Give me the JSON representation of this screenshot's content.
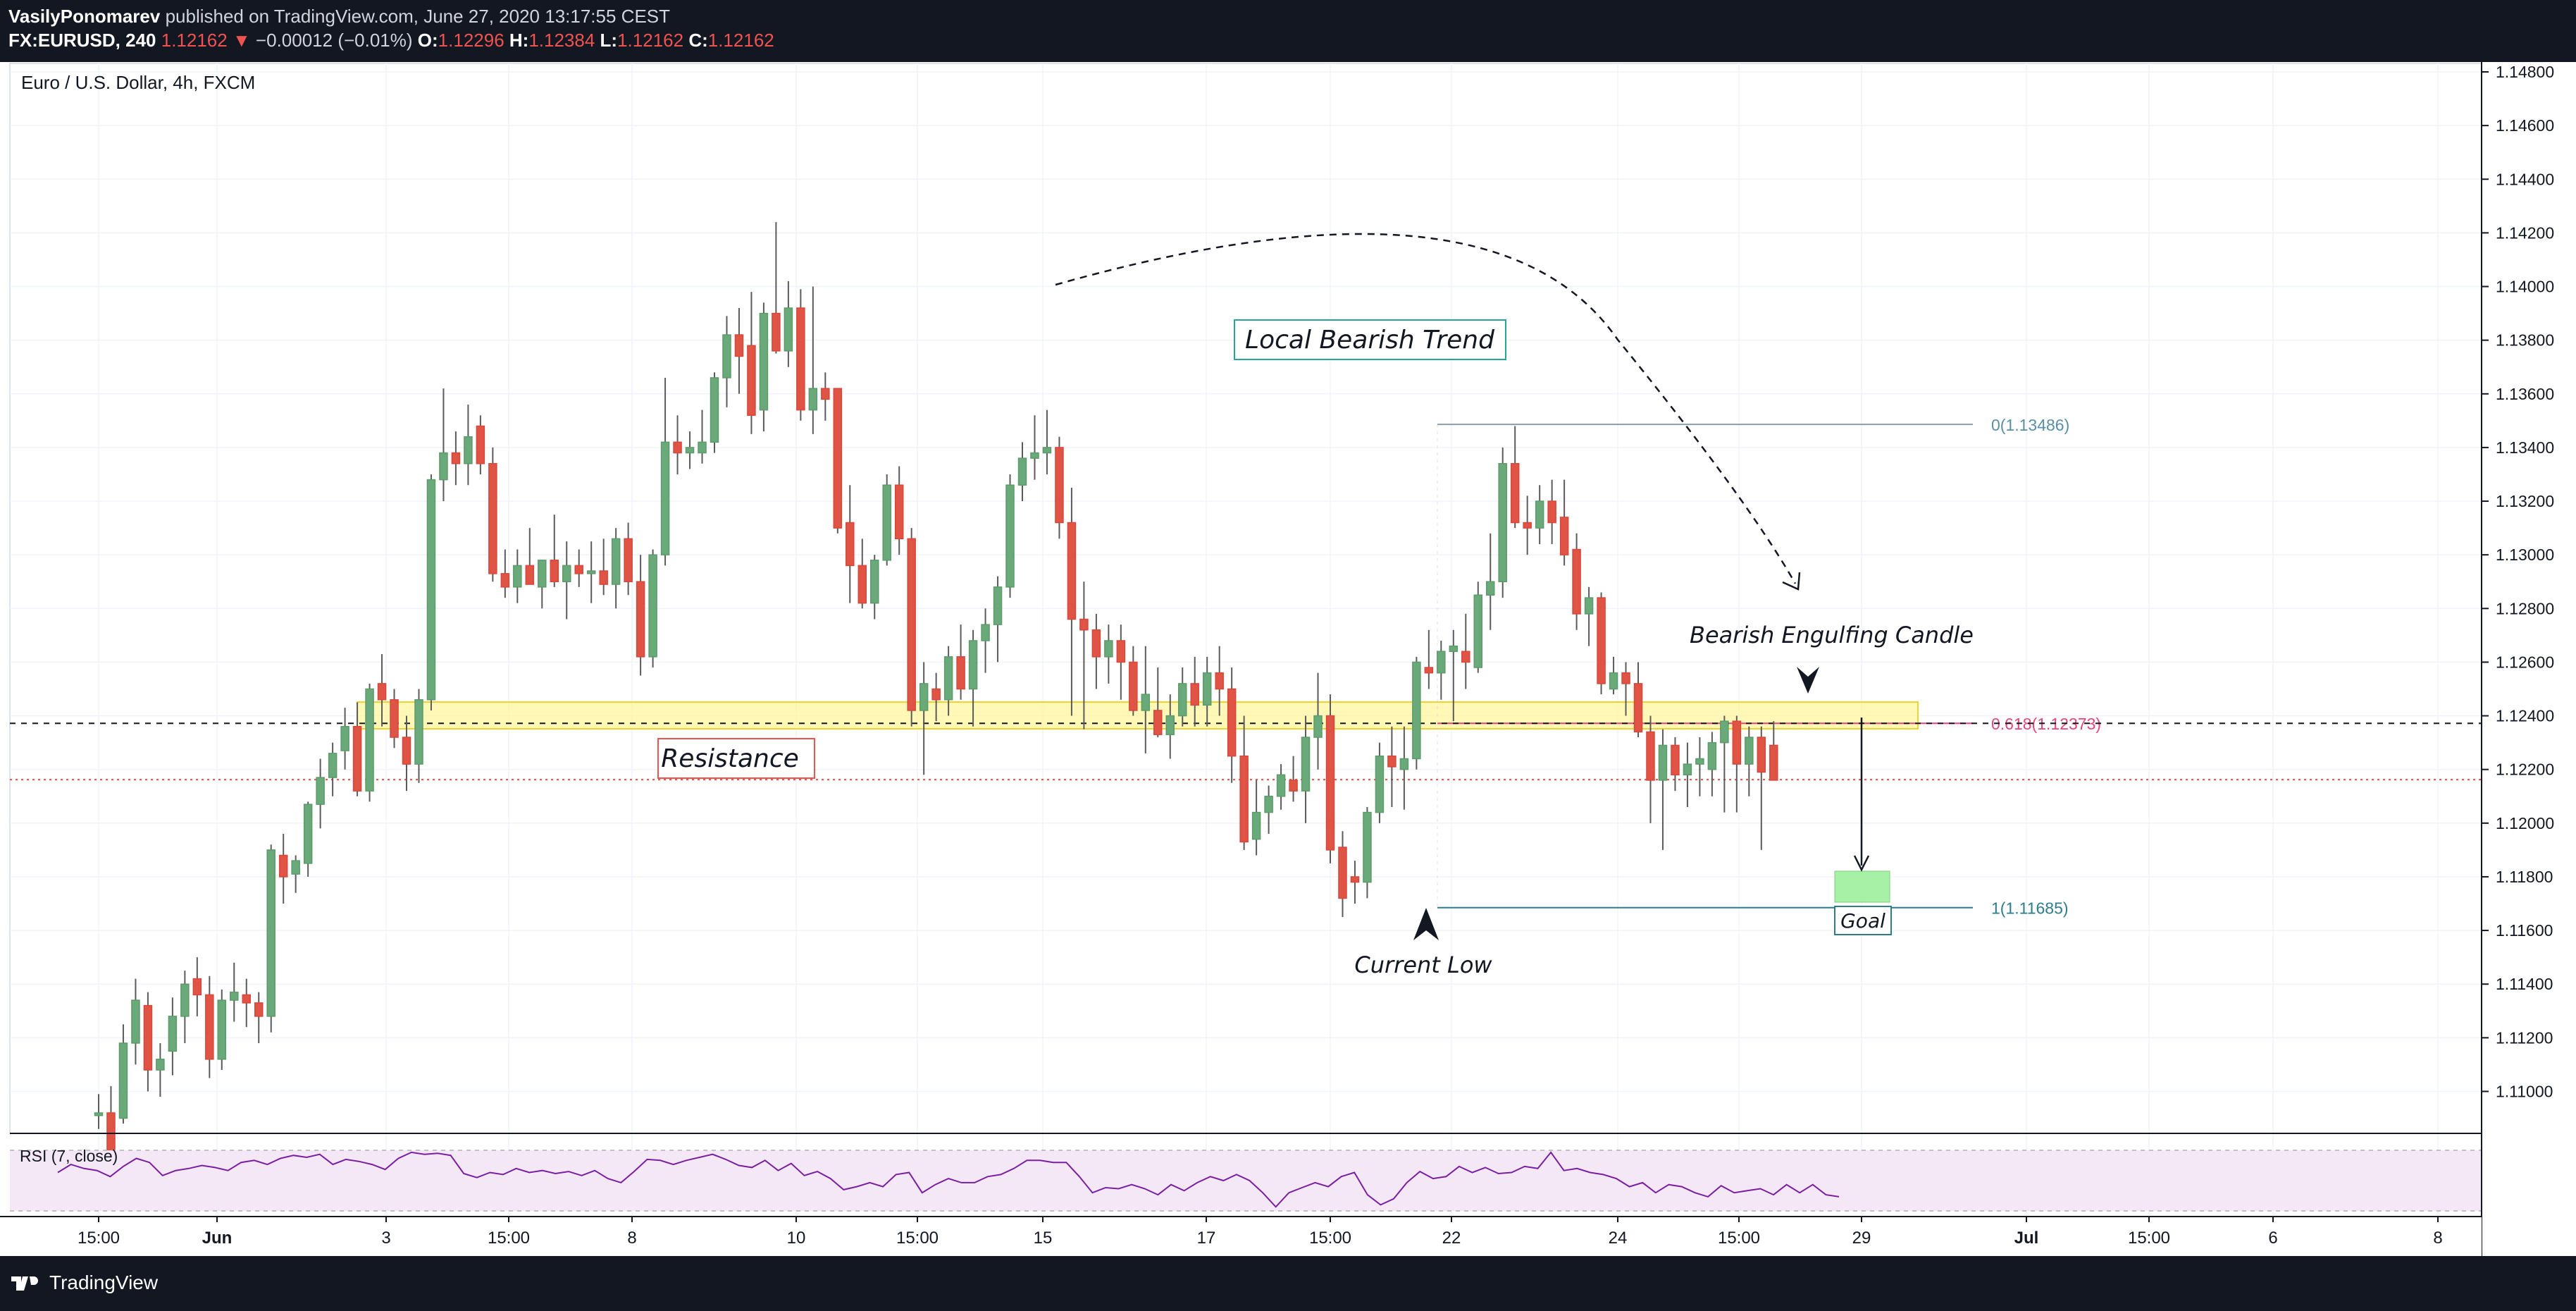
{
  "header": {
    "author": "VasilyPonomarev",
    "published_text": " published on TradingView.com, June 27, 2020 13:17:55 CEST",
    "symbol": "FX:EURUSD, 240",
    "last": "1.12162",
    "change_arrow": "▼",
    "change": "−0.00012 (−0.01%)",
    "o_label": "O:",
    "o_value": "1.12296",
    "h_label": "H:",
    "h_value": "1.12384",
    "l_label": "L:",
    "l_value": "1.12162",
    "c_label": "C:",
    "c_value": "1.12162"
  },
  "footer": {
    "brand": "TradingView"
  },
  "chart_data": {
    "type": "candlestick",
    "title": "Euro / U.S. Dollar, 4h, FXCM",
    "ylim": [
      1.1085,
      1.1487
    ],
    "y_ticks": [
      "1.14800",
      "1.14600",
      "1.14400",
      "1.14200",
      "1.14000",
      "1.13800",
      "1.13600",
      "1.13400",
      "1.13200",
      "1.13000",
      "1.12800",
      "1.12600",
      "1.12400",
      "1.12200",
      "1.12000",
      "1.11800",
      "1.11600",
      "1.11400",
      "1.11200",
      "1.11000"
    ],
    "x_ticks": [
      "15:00",
      "Jun",
      "3",
      "15:00",
      "8",
      "10",
      "15:00",
      "15",
      "17",
      "15:00",
      "22",
      "24",
      "15:00",
      "29",
      "Jul",
      "15:00",
      "6",
      "8"
    ],
    "price_labels": {
      "current": "1.12162",
      "fib_level": "1.12372"
    },
    "annotations": {
      "resistance": "Resistance",
      "trend": "Local Bearish Trend",
      "engulfing": "Bearish Engulfing Candle",
      "current_low": "Current Low",
      "goal": "Goal",
      "fib_0": "0(1.13486)",
      "fib_618": "0.618(1.12373)",
      "fib_1": "1(1.11685)"
    },
    "candles": [
      [
        1.1091,
        1.1099,
        1.1086,
        1.1092
      ],
      [
        1.1092,
        1.1102,
        1.108,
        1.1078
      ],
      [
        1.109,
        1.1125,
        1.1088,
        1.1118
      ],
      [
        1.1118,
        1.1142,
        1.111,
        1.1134
      ],
      [
        1.1132,
        1.1137,
        1.11,
        1.1108
      ],
      [
        1.1108,
        1.1118,
        1.1098,
        1.1112
      ],
      [
        1.1115,
        1.1135,
        1.1106,
        1.1128
      ],
      [
        1.1128,
        1.1145,
        1.1118,
        1.114
      ],
      [
        1.1142,
        1.115,
        1.1128,
        1.1136
      ],
      [
        1.1136,
        1.1143,
        1.1105,
        1.1112
      ],
      [
        1.1112,
        1.1138,
        1.1108,
        1.1134
      ],
      [
        1.1134,
        1.1148,
        1.1126,
        1.1137
      ],
      [
        1.1136,
        1.1142,
        1.1124,
        1.1133
      ],
      [
        1.1133,
        1.1137,
        1.1118,
        1.1128
      ],
      [
        1.1128,
        1.1192,
        1.1122,
        1.119
      ],
      [
        1.1188,
        1.1196,
        1.117,
        1.118
      ],
      [
        1.1181,
        1.1188,
        1.1174,
        1.1186
      ],
      [
        1.1185,
        1.1208,
        1.118,
        1.1207
      ],
      [
        1.1207,
        1.1224,
        1.1198,
        1.1217
      ],
      [
        1.1217,
        1.123,
        1.121,
        1.1226
      ],
      [
        1.1227,
        1.1243,
        1.122,
        1.1236
      ],
      [
        1.1236,
        1.1245,
        1.121,
        1.1212
      ],
      [
        1.1212,
        1.1252,
        1.1208,
        1.125
      ],
      [
        1.1252,
        1.1263,
        1.1236,
        1.1246
      ],
      [
        1.1246,
        1.125,
        1.1228,
        1.1232
      ],
      [
        1.1232,
        1.124,
        1.1212,
        1.1222
      ],
      [
        1.1222,
        1.125,
        1.1215,
        1.1246
      ],
      [
        1.1246,
        1.133,
        1.1242,
        1.1328
      ],
      [
        1.1328,
        1.1362,
        1.132,
        1.1338
      ],
      [
        1.1338,
        1.1346,
        1.1326,
        1.1334
      ],
      [
        1.1334,
        1.1356,
        1.1326,
        1.1344
      ],
      [
        1.1348,
        1.1352,
        1.133,
        1.1334
      ],
      [
        1.1334,
        1.134,
        1.129,
        1.1293
      ],
      [
        1.1293,
        1.1302,
        1.1284,
        1.1288
      ],
      [
        1.1288,
        1.1302,
        1.1282,
        1.1296
      ],
      [
        1.1296,
        1.131,
        1.129,
        1.1289
      ],
      [
        1.1288,
        1.1298,
        1.128,
        1.1298
      ],
      [
        1.1298,
        1.1315,
        1.1288,
        1.129
      ],
      [
        1.129,
        1.1305,
        1.1276,
        1.1296
      ],
      [
        1.1296,
        1.1302,
        1.1288,
        1.1293
      ],
      [
        1.1293,
        1.1305,
        1.1282,
        1.1294
      ],
      [
        1.1294,
        1.1306,
        1.1285,
        1.1289
      ],
      [
        1.1289,
        1.131,
        1.128,
        1.1306
      ],
      [
        1.1306,
        1.1312,
        1.1285,
        1.129
      ],
      [
        1.129,
        1.13,
        1.1255,
        1.1262
      ],
      [
        1.1262,
        1.1302,
        1.1258,
        1.13
      ],
      [
        1.13,
        1.1366,
        1.1296,
        1.1342
      ],
      [
        1.1342,
        1.1352,
        1.133,
        1.1338
      ],
      [
        1.1338,
        1.1346,
        1.1332,
        1.134
      ],
      [
        1.1338,
        1.1354,
        1.1334,
        1.1342
      ],
      [
        1.1342,
        1.1368,
        1.1338,
        1.1366
      ],
      [
        1.1366,
        1.1389,
        1.1355,
        1.1382
      ],
      [
        1.1382,
        1.1392,
        1.136,
        1.1374
      ],
      [
        1.1378,
        1.1398,
        1.1345,
        1.1352
      ],
      [
        1.1354,
        1.1394,
        1.1346,
        1.139
      ],
      [
        1.139,
        1.1424,
        1.1375,
        1.1376
      ],
      [
        1.1376,
        1.1402,
        1.137,
        1.1392
      ],
      [
        1.1392,
        1.1399,
        1.135,
        1.1354
      ],
      [
        1.1354,
        1.14,
        1.1345,
        1.1362
      ],
      [
        1.1362,
        1.1368,
        1.135,
        1.1358
      ],
      [
        1.1362,
        1.1362,
        1.1308,
        1.131
      ],
      [
        1.1312,
        1.1326,
        1.1282,
        1.1296
      ],
      [
        1.1296,
        1.1306,
        1.128,
        1.1282
      ],
      [
        1.1282,
        1.13,
        1.1276,
        1.1298
      ],
      [
        1.1298,
        1.133,
        1.1296,
        1.1326
      ],
      [
        1.1326,
        1.1333,
        1.13,
        1.1306
      ],
      [
        1.1306,
        1.131,
        1.1236,
        1.1242
      ],
      [
        1.1242,
        1.126,
        1.1218,
        1.1252
      ],
      [
        1.125,
        1.1256,
        1.1238,
        1.1246
      ],
      [
        1.1246,
        1.1266,
        1.124,
        1.1262
      ],
      [
        1.1262,
        1.1274,
        1.1246,
        1.125
      ],
      [
        1.125,
        1.1272,
        1.1236,
        1.1268
      ],
      [
        1.1268,
        1.128,
        1.1256,
        1.1274
      ],
      [
        1.1274,
        1.1292,
        1.126,
        1.1288
      ],
      [
        1.1288,
        1.133,
        1.1284,
        1.1326
      ],
      [
        1.1326,
        1.1342,
        1.132,
        1.1336
      ],
      [
        1.1336,
        1.1352,
        1.1328,
        1.1338
      ],
      [
        1.1338,
        1.1354,
        1.133,
        1.134
      ],
      [
        1.134,
        1.1344,
        1.1306,
        1.1312
      ],
      [
        1.1312,
        1.1325,
        1.124,
        1.1276
      ],
      [
        1.1276,
        1.129,
        1.1235,
        1.1272
      ],
      [
        1.1272,
        1.1278,
        1.125,
        1.1262
      ],
      [
        1.1262,
        1.1274,
        1.1252,
        1.1268
      ],
      [
        1.1268,
        1.1274,
        1.1246,
        1.126
      ],
      [
        1.126,
        1.1266,
        1.124,
        1.1242
      ],
      [
        1.1242,
        1.1266,
        1.1226,
        1.1248
      ],
      [
        1.1242,
        1.1258,
        1.1232,
        1.1233
      ],
      [
        1.1233,
        1.1248,
        1.1224,
        1.124
      ],
      [
        1.124,
        1.1258,
        1.1236,
        1.1252
      ],
      [
        1.1252,
        1.1262,
        1.1236,
        1.1244
      ],
      [
        1.1244,
        1.1262,
        1.1236,
        1.1256
      ],
      [
        1.1256,
        1.1266,
        1.124,
        1.125
      ],
      [
        1.125,
        1.1258,
        1.1215,
        1.1225
      ],
      [
        1.1225,
        1.124,
        1.119,
        1.1193
      ],
      [
        1.1194,
        1.1216,
        1.1188,
        1.1204
      ],
      [
        1.1204,
        1.1214,
        1.1196,
        1.121
      ],
      [
        1.121,
        1.1222,
        1.1205,
        1.1218
      ],
      [
        1.1216,
        1.1225,
        1.1208,
        1.1212
      ],
      [
        1.1212,
        1.124,
        1.12,
        1.1232
      ],
      [
        1.1232,
        1.1256,
        1.122,
        1.124
      ],
      [
        1.124,
        1.1248,
        1.1185,
        1.119
      ],
      [
        1.1191,
        1.1197,
        1.1165,
        1.1172
      ],
      [
        1.118,
        1.1186,
        1.117,
        1.1178
      ],
      [
        1.1178,
        1.1206,
        1.1172,
        1.1204
      ],
      [
        1.1204,
        1.123,
        1.12,
        1.1225
      ],
      [
        1.1225,
        1.1236,
        1.1206,
        1.1221
      ],
      [
        1.122,
        1.1236,
        1.1205,
        1.1224
      ],
      [
        1.1224,
        1.1262,
        1.122,
        1.126
      ],
      [
        1.1258,
        1.1272,
        1.125,
        1.1256
      ],
      [
        1.1256,
        1.1268,
        1.1246,
        1.1264
      ],
      [
        1.1264,
        1.1272,
        1.1238,
        1.1266
      ],
      [
        1.1264,
        1.1278,
        1.125,
        1.126
      ],
      [
        1.1258,
        1.129,
        1.1256,
        1.1285
      ],
      [
        1.1285,
        1.1308,
        1.1272,
        1.129
      ],
      [
        1.129,
        1.134,
        1.1284,
        1.1334
      ],
      [
        1.1334,
        1.1348,
        1.131,
        1.1312
      ],
      [
        1.1312,
        1.1322,
        1.13,
        1.131
      ],
      [
        1.131,
        1.1326,
        1.1304,
        1.132
      ],
      [
        1.132,
        1.1328,
        1.1304,
        1.1312
      ],
      [
        1.1314,
        1.1328,
        1.1296,
        1.13
      ],
      [
        1.1302,
        1.1308,
        1.1272,
        1.1278
      ],
      [
        1.1278,
        1.1288,
        1.1266,
        1.1284
      ],
      [
        1.1284,
        1.1286,
        1.1248,
        1.1252
      ],
      [
        1.125,
        1.1262,
        1.1248,
        1.1256
      ],
      [
        1.1256,
        1.126,
        1.124,
        1.1252
      ],
      [
        1.1252,
        1.126,
        1.1232,
        1.1234
      ],
      [
        1.1234,
        1.124,
        1.12,
        1.1216
      ],
      [
        1.1216,
        1.1235,
        1.119,
        1.1229
      ],
      [
        1.1229,
        1.1232,
        1.1212,
        1.1218
      ],
      [
        1.1218,
        1.123,
        1.1206,
        1.1222
      ],
      [
        1.1222,
        1.1232,
        1.121,
        1.1224
      ],
      [
        1.122,
        1.1234,
        1.121,
        1.123
      ],
      [
        1.123,
        1.124,
        1.1204,
        1.1238
      ],
      [
        1.1238,
        1.124,
        1.1204,
        1.1222
      ],
      [
        1.1222,
        1.1236,
        1.121,
        1.1232
      ],
      [
        1.1232,
        1.1236,
        1.119,
        1.1219
      ],
      [
        1.1229,
        1.1238,
        1.1216,
        1.1216
      ]
    ],
    "rsi": {
      "label": "RSI (7, close)",
      "level": "50.00",
      "values": [
        58,
        66,
        62,
        60,
        54,
        64,
        72,
        68,
        55,
        60,
        62,
        65,
        63,
        60,
        68,
        70,
        66,
        72,
        75,
        73,
        76,
        66,
        71,
        69,
        66,
        61,
        72,
        78,
        76,
        77,
        75,
        57,
        53,
        58,
        56,
        62,
        58,
        60,
        57,
        59,
        55,
        60,
        52,
        48,
        59,
        71,
        70,
        66,
        70,
        73,
        76,
        71,
        65,
        63,
        70,
        60,
        67,
        55,
        59,
        52,
        41,
        44,
        48,
        44,
        56,
        58,
        38,
        46,
        52,
        48,
        48,
        54,
        56,
        62,
        70,
        70,
        68,
        68,
        54,
        38,
        43,
        42,
        46,
        42,
        36,
        46,
        40,
        48,
        54,
        50,
        56,
        50,
        38,
        24,
        38,
        43,
        48,
        44,
        54,
        58,
        36,
        26,
        32,
        48,
        59,
        52,
        54,
        64,
        58,
        63,
        57,
        58,
        64,
        62,
        78,
        60,
        62,
        58,
        56,
        52,
        44,
        48,
        38,
        46,
        44,
        38,
        34,
        45,
        38,
        40,
        42,
        36,
        46,
        38,
        46,
        36,
        34
      ]
    }
  }
}
